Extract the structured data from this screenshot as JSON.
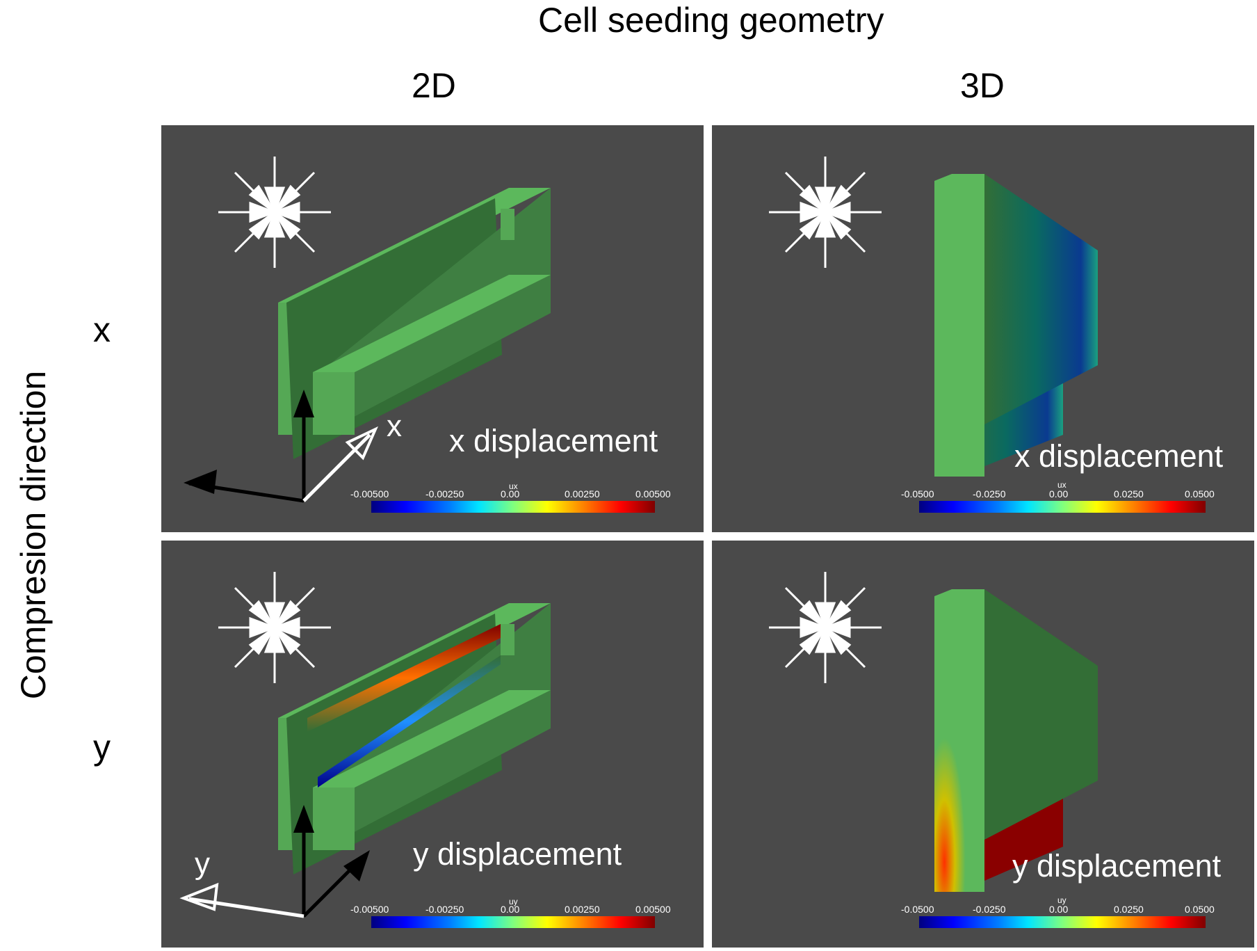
{
  "figure": {
    "title": "Cell seeding geometry",
    "col_2d": "2D",
    "col_3d": "3D",
    "row_axis_label": "Compresion direction",
    "row_x": "x",
    "row_y": "y"
  },
  "panels": {
    "tl": {
      "label": "x displacement",
      "var": "ux",
      "ticks": [
        "-0.00500",
        "-0.00250",
        "0.00",
        "0.00250",
        "0.00500"
      ],
      "axis_label": "x"
    },
    "tr": {
      "label": "x displacement",
      "var": "ux",
      "ticks": [
        "-0.0500",
        "-0.0250",
        "0.00",
        "0.0250",
        "0.0500"
      ]
    },
    "bl": {
      "label": "y displacement",
      "var": "uy",
      "ticks": [
        "-0.00500",
        "-0.00250",
        "0.00",
        "0.00250",
        "0.00500"
      ],
      "axis_label": "y"
    },
    "br": {
      "label": "y displacement",
      "var": "uy",
      "ticks": [
        "-0.0500",
        "-0.0250",
        "0.00",
        "0.0250",
        "0.0500"
      ]
    }
  },
  "colors": {
    "panel_bg": "#4a4a4a",
    "green_light": "#5cb85c",
    "green_dark": "#336e36"
  }
}
